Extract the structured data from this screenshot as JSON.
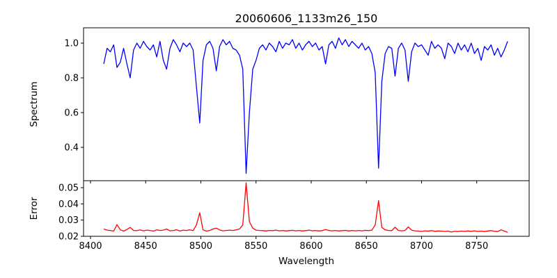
{
  "chart_data": [
    {
      "type": "line",
      "title": "20060606_1133m26_150",
      "xlabel": "",
      "ylabel": "Spectrum",
      "xlim": [
        8393.7,
        8797.5
      ],
      "ylim": [
        0.208,
        1.088
      ],
      "xticks": [
        8400,
        8450,
        8500,
        8550,
        8600,
        8650,
        8700,
        8750
      ],
      "yticks": [
        0.4,
        0.6,
        0.8,
        1.0
      ],
      "ytick_labels": [
        "0.4",
        "0.6",
        "0.8",
        "1.0"
      ],
      "color": "#0000ff",
      "x_start": 8412,
      "x_step": 3,
      "values": [
        0.88,
        0.97,
        0.95,
        0.99,
        0.86,
        0.89,
        0.97,
        0.88,
        0.8,
        0.96,
        1.0,
        0.97,
        1.01,
        0.98,
        0.96,
        0.99,
        0.92,
        1.01,
        0.9,
        0.85,
        0.97,
        1.02,
        0.99,
        0.95,
        1.0,
        0.98,
        1.0,
        0.96,
        0.75,
        0.54,
        0.9,
        0.99,
        1.01,
        0.97,
        0.84,
        0.98,
        1.02,
        0.99,
        1.01,
        0.97,
        0.96,
        0.93,
        0.85,
        0.25,
        0.6,
        0.85,
        0.9,
        0.97,
        0.99,
        0.96,
        1.0,
        0.98,
        0.95,
        1.01,
        0.97,
        1.0,
        0.99,
        1.02,
        0.97,
        1.0,
        0.96,
        0.99,
        1.01,
        0.98,
        1.0,
        0.96,
        0.98,
        0.88,
        0.99,
        1.01,
        0.97,
        1.03,
        0.99,
        1.02,
        0.98,
        1.01,
        0.99,
        0.97,
        1.0,
        0.96,
        0.98,
        0.94,
        0.83,
        0.28,
        0.78,
        0.94,
        0.98,
        0.97,
        0.81,
        0.97,
        1.0,
        0.96,
        0.78,
        0.95,
        1.0,
        0.98,
        0.99,
        0.96,
        0.93,
        1.01,
        0.97,
        0.99,
        0.97,
        0.91,
        1.0,
        0.98,
        0.94,
        1.0,
        0.96,
        0.99,
        0.95,
        1.0,
        0.94,
        0.97,
        0.9,
        0.98,
        0.96,
        0.99,
        0.93,
        0.97,
        0.92,
        0.96,
        1.01
      ]
    },
    {
      "type": "line",
      "title": "",
      "xlabel": "Wavelength",
      "ylabel": "Error",
      "xlim": [
        8393.7,
        8797.5
      ],
      "ylim": [
        0.02,
        0.0543
      ],
      "xticks": [
        8400,
        8450,
        8500,
        8550,
        8600,
        8650,
        8700,
        8750
      ],
      "xtick_labels": [
        "8400",
        "8450",
        "8500",
        "8550",
        "8600",
        "8650",
        "8700",
        "8750"
      ],
      "yticks": [
        0.02,
        0.03,
        0.04,
        0.05
      ],
      "ytick_labels": [
        "0.02",
        "0.03",
        "0.04",
        "0.05"
      ],
      "color": "#ff0000",
      "x_start": 8412,
      "x_step": 3,
      "values": [
        0.0245,
        0.0238,
        0.0236,
        0.0232,
        0.0272,
        0.024,
        0.0232,
        0.0242,
        0.0255,
        0.0236,
        0.0235,
        0.024,
        0.0234,
        0.0238,
        0.0236,
        0.0232,
        0.024,
        0.0236,
        0.0238,
        0.0245,
        0.0234,
        0.0236,
        0.024,
        0.0233,
        0.0238,
        0.0236,
        0.024,
        0.0235,
        0.027,
        0.0345,
        0.024,
        0.0232,
        0.0236,
        0.0245,
        0.025,
        0.024,
        0.0234,
        0.0236,
        0.0238,
        0.0236,
        0.024,
        0.0245,
        0.027,
        0.053,
        0.029,
        0.025,
        0.0238,
        0.0236,
        0.0235,
        0.0233,
        0.0236,
        0.0235,
        0.0238,
        0.0234,
        0.0236,
        0.0233,
        0.0235,
        0.0237,
        0.0234,
        0.0236,
        0.0233,
        0.0235,
        0.0238,
        0.0234,
        0.0236,
        0.0233,
        0.0235,
        0.0242,
        0.0236,
        0.0234,
        0.0236,
        0.0233,
        0.0235,
        0.0237,
        0.0233,
        0.0236,
        0.0234,
        0.0236,
        0.0234,
        0.0237,
        0.0235,
        0.0238,
        0.027,
        0.042,
        0.0255,
        0.024,
        0.0236,
        0.0235,
        0.0256,
        0.0236,
        0.0234,
        0.0236,
        0.0258,
        0.0238,
        0.0234,
        0.0232,
        0.023,
        0.0234,
        0.0232,
        0.0235,
        0.0231,
        0.0233,
        0.0232,
        0.023,
        0.0232,
        0.0226,
        0.0231,
        0.0229,
        0.0232,
        0.023,
        0.0233,
        0.0231,
        0.0234,
        0.023,
        0.0232,
        0.0229,
        0.0233,
        0.0235,
        0.0231,
        0.0229,
        0.024,
        0.0232,
        0.0225
      ]
    }
  ]
}
